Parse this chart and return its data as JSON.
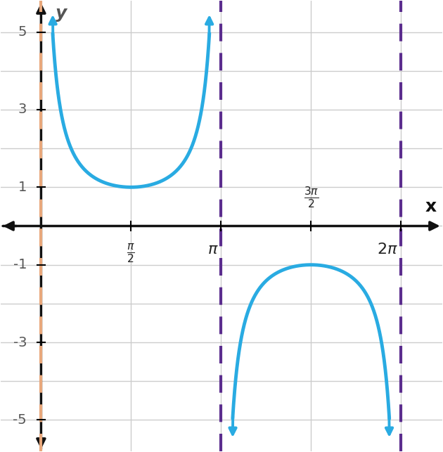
{
  "xlabel": "x",
  "ylabel": "y",
  "xlim": [
    -0.7,
    7.0
  ],
  "ylim": [
    -5.8,
    5.8
  ],
  "yticks": [
    -5,
    -3,
    -1,
    1,
    3,
    5
  ],
  "xtick_positions": [
    1.5707963267948966,
    3.141592653589793,
    4.71238898038469,
    6.283185307179586
  ],
  "asymptote_color_yaxis": "#e8a87c",
  "asymptote_color_other": "#5b2d8e",
  "curve_color": "#29abe2",
  "curve_linewidth": 3.5,
  "asymptote_linewidth": 3.0,
  "axis_color": "#111111",
  "grid_color": "#cccccc",
  "background_color": "#ffffff",
  "clip_ymin": -5.0,
  "clip_ymax": 5.0,
  "pi": 3.141592653589793
}
